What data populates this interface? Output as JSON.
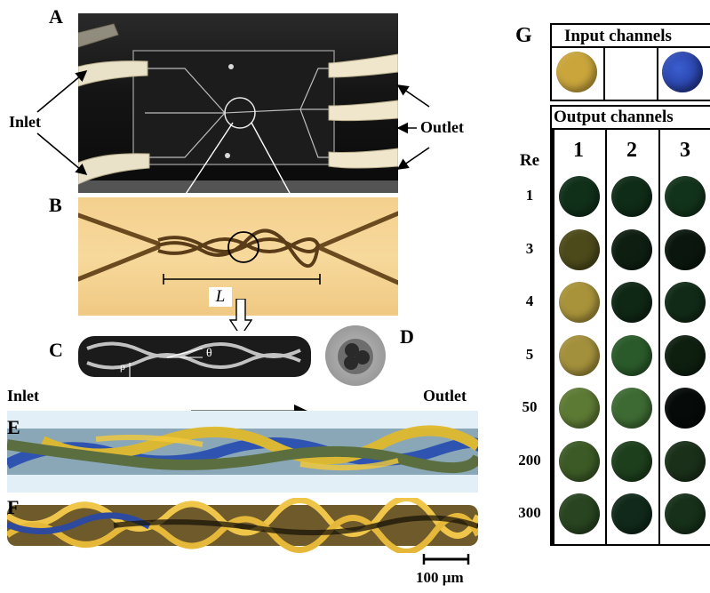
{
  "panels": {
    "A": "A",
    "B": "B",
    "C": "C",
    "D": "D",
    "E": "E",
    "F": "F",
    "G": "G"
  },
  "annotations": {
    "inlet_a": "Inlet",
    "outlet_a": "Outlet",
    "length_label": "L",
    "inlet_e": "Inlet",
    "outlet_e": "Outlet",
    "scale_bar": "100 µm",
    "rho": "ρ",
    "theta": "θ"
  },
  "grid": {
    "input_header": "Input channels",
    "output_header": "Output channels",
    "re_header": "Re",
    "columns": [
      "1",
      "2",
      "3"
    ],
    "input_colors": [
      "#c9a53b",
      null,
      "#2f4aa8"
    ],
    "rows": [
      {
        "re": "1",
        "colors": [
          "#10301a",
          "#0f2c18",
          "#12331b"
        ]
      },
      {
        "re": "3",
        "colors": [
          "#4c4a1a",
          "#0e1f12",
          "#0b170e"
        ]
      },
      {
        "re": "4",
        "colors": [
          "#a8923a",
          "#0f2715",
          "#112a17"
        ]
      },
      {
        "re": "5",
        "colors": [
          "#a3903c",
          "#2a5a2a",
          "#0e1f10"
        ]
      },
      {
        "re": "50",
        "colors": [
          "#5d7a34",
          "#3d6a33",
          "#060a08"
        ]
      },
      {
        "re": "200",
        "colors": [
          "#3b5a25",
          "#1d3f1c",
          "#1a3019"
        ]
      },
      {
        "re": "300",
        "colors": [
          "#284420",
          "#10291a",
          "#163019"
        ]
      }
    ]
  }
}
